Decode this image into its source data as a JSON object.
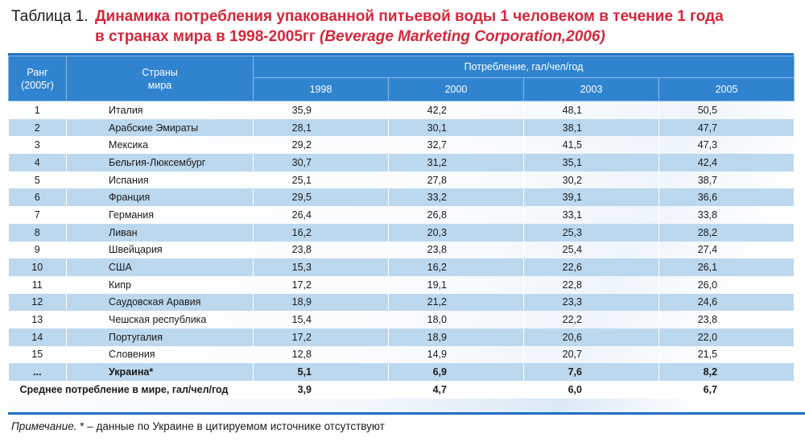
{
  "title": {
    "prefix": "Таблица 1.",
    "line1": "Динамика потребления упакованной питьевой воды 1 человеком в течение 1 года",
    "line2": "в странах мира в 1998-2005гг",
    "source": "(Beverage Marketing Corporation,2006)"
  },
  "headers": {
    "rank_line1": "Ранг",
    "rank_line2": "(2005г)",
    "country_line1": "Страны",
    "country_line2": "мира",
    "consumption": "Потребление, гал/чел/год",
    "years": [
      "1998",
      "2000",
      "2003",
      "2005"
    ]
  },
  "rows": [
    {
      "rank": "1",
      "country": "Италия",
      "values": [
        "35,9",
        "42,2",
        "48,1",
        "50,5"
      ]
    },
    {
      "rank": "2",
      "country": "Арабские Эмираты",
      "values": [
        "28,1",
        "30,1",
        "38,1",
        "47,7"
      ]
    },
    {
      "rank": "3",
      "country": "Мексика",
      "values": [
        "29,2",
        "32,7",
        "41,5",
        "47,3"
      ]
    },
    {
      "rank": "4",
      "country": "Бельгия-Люксембург",
      "values": [
        "30,7",
        "31,2",
        "35,1",
        "42,4"
      ]
    },
    {
      "rank": "5",
      "country": "Испания",
      "values": [
        "25,1",
        "27,8",
        "30,2",
        "38,7"
      ]
    },
    {
      "rank": "6",
      "country": "Франция",
      "values": [
        "29,5",
        "33,2",
        "39,1",
        "36,6"
      ]
    },
    {
      "rank": "7",
      "country": "Германия",
      "values": [
        "26,4",
        "26,8",
        "33,1",
        "33,8"
      ]
    },
    {
      "rank": "8",
      "country": "Ливан",
      "values": [
        "16,2",
        "20,3",
        "25,3",
        "28,2"
      ]
    },
    {
      "rank": "9",
      "country": "Швейцария",
      "values": [
        "23,8",
        "23,8",
        "25,4",
        "27,4"
      ]
    },
    {
      "rank": "10",
      "country": "США",
      "values": [
        "15,3",
        "16,2",
        "22,6",
        "26,1"
      ]
    },
    {
      "rank": "11",
      "country": "Кипр",
      "values": [
        "17,2",
        "19,1",
        "22,8",
        "26,0"
      ]
    },
    {
      "rank": "12",
      "country": "Саудовская Аравия",
      "values": [
        "18,9",
        "21,2",
        "23,3",
        "24,6"
      ]
    },
    {
      "rank": "13",
      "country": "Чешская республика",
      "values": [
        "15,4",
        "18,0",
        "22,2",
        "23,8"
      ]
    },
    {
      "rank": "14",
      "country": "Португалия",
      "values": [
        "17,2",
        "18,9",
        "20,6",
        "22,0"
      ]
    },
    {
      "rank": "15",
      "country": "Словения",
      "values": [
        "12,8",
        "14,9",
        "20,7",
        "21,5"
      ]
    },
    {
      "rank": "...",
      "country": "Украина*",
      "values": [
        "5,1",
        "6,9",
        "7,6",
        "8,2"
      ]
    }
  ],
  "average": {
    "label": "Среднее потребление в мире, гал/чел/год",
    "values": [
      "3,9",
      "4,7",
      "6,0",
      "6,7"
    ]
  },
  "note": {
    "lead": "Примечание.",
    "text": " * – данные по Украине в цитируемом источнике отсутствуют"
  },
  "colors": {
    "header_blue": "#2f83cf",
    "title_red": "#d6263a",
    "row_stripe": "#bcd8ee"
  }
}
